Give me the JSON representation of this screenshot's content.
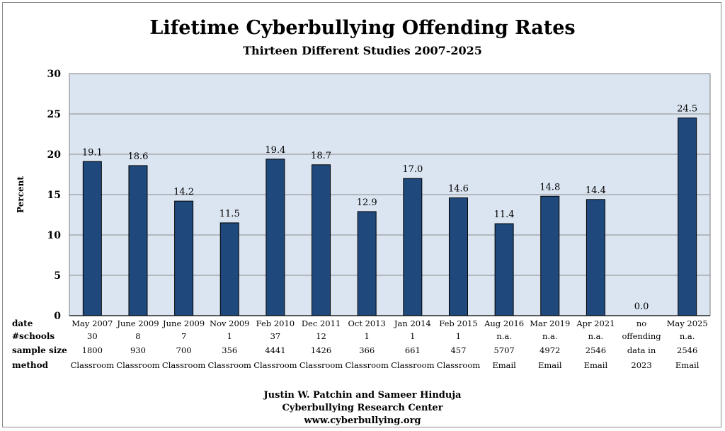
{
  "chart_data": {
    "type": "bar",
    "title": "Lifetime Cyberbullying Offending Rates",
    "subtitle": "Thirteen Different Studies 2007-2025",
    "ylabel": "Percent",
    "ylim": [
      0,
      30
    ],
    "yticks": [
      0,
      5,
      10,
      15,
      20,
      25,
      30
    ],
    "categories": [
      "May 2007",
      "June 2009",
      "June 2009",
      "Nov 2009",
      "Feb 2010",
      "Dec 2011",
      "Oct 2013",
      "Jan 2014",
      "Feb 2015",
      "Aug 2016",
      "Mar 2019",
      "Apr 2021",
      "no",
      "May 2025"
    ],
    "values": [
      19.1,
      18.6,
      14.2,
      11.5,
      19.4,
      18.7,
      12.9,
      17.0,
      14.6,
      11.4,
      14.8,
      14.4,
      0.0,
      24.5
    ],
    "value_labels": [
      "19.1",
      "18.6",
      "14.2",
      "11.5",
      "19.4",
      "18.7",
      "12.9",
      "17.0",
      "14.6",
      "11.4",
      "14.8",
      "14.4",
      "0.0",
      "24.5"
    ],
    "bar_color": "#1f497d",
    "plot_background": "#dbe5f1",
    "table": {
      "row_labels": [
        "date",
        "#schools",
        "sample size",
        "method"
      ],
      "schools": [
        "30",
        "8",
        "7",
        "1",
        "37",
        "12",
        "1",
        "1",
        "1",
        "n.a.",
        "n.a.",
        "n.a.",
        "offending",
        "n.a."
      ],
      "sample_size": [
        "1800",
        "930",
        "700",
        "356",
        "4441",
        "1426",
        "366",
        "661",
        "457",
        "5707",
        "4972",
        "2546",
        "data in",
        "2546"
      ],
      "method": [
        "Classroom",
        "Classroom",
        "Classroom",
        "Classroom",
        "Classroom",
        "Classroom",
        "Classroom",
        "Classroom",
        "Classroom",
        "Email",
        "Email",
        "Email",
        "2023",
        "Email"
      ]
    }
  },
  "credits": {
    "line1": "Justin W. Patchin and Sameer Hinduja",
    "line2": "Cyberbullying Research Center",
    "line3": "www.cyberbullying.org"
  }
}
